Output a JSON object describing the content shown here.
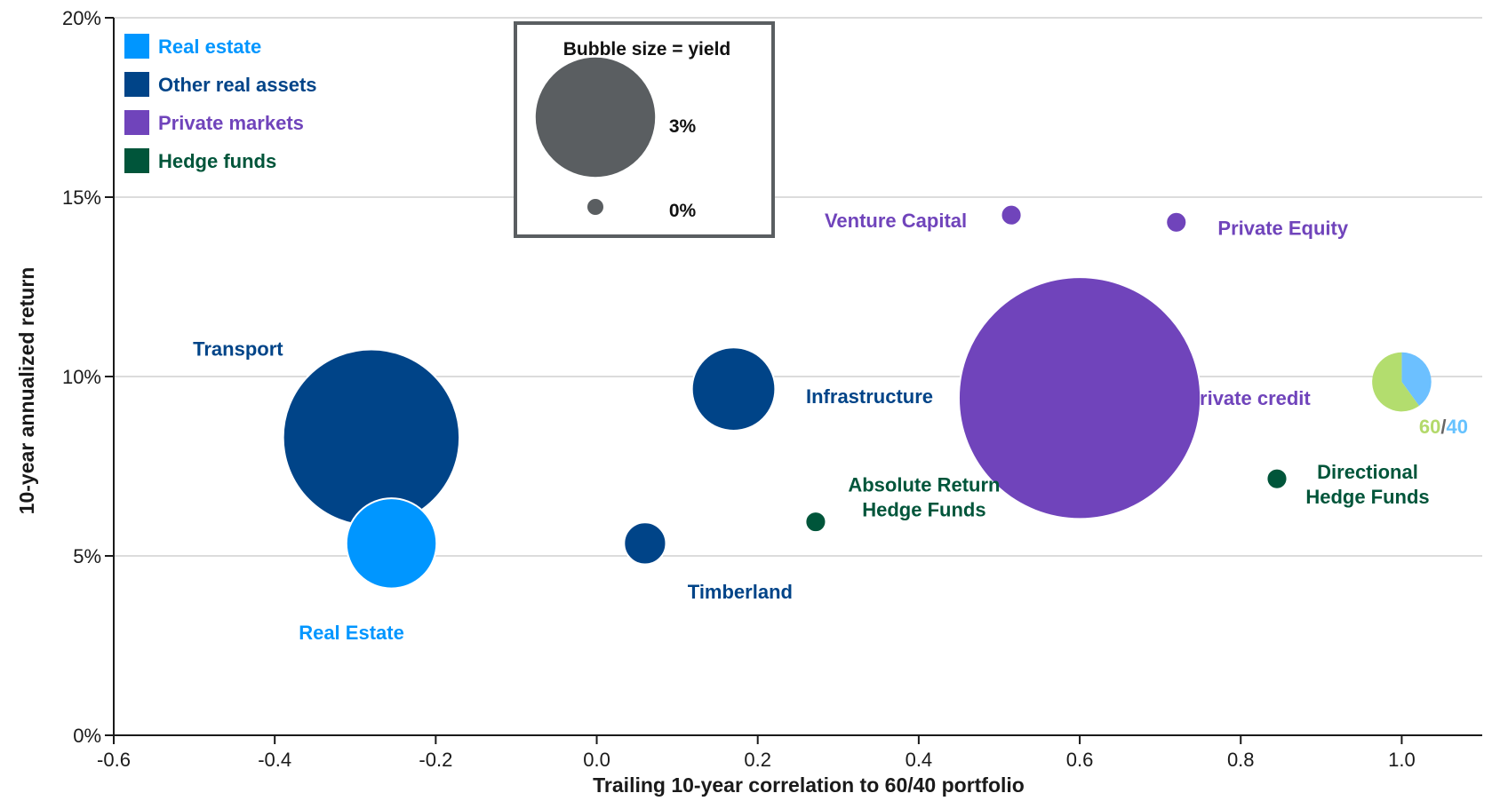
{
  "chart_data": {
    "type": "scatter",
    "subtype": "bubble",
    "xlabel": "Trailing 10-year correlation to 60/40 portfolio",
    "ylabel": "10-year annualized return",
    "xlim": [
      -0.6,
      1.1
    ],
    "ylim": [
      0,
      20
    ],
    "x_ticks": [
      -0.6,
      -0.4,
      -0.2,
      0.0,
      0.2,
      0.4,
      0.6,
      0.8,
      1.0
    ],
    "x_tick_labels": [
      "-0.6",
      "-0.4",
      "-0.2",
      "0.0",
      "0.2",
      "0.4",
      "0.6",
      "0.8",
      "1.0"
    ],
    "y_ticks": [
      0,
      5,
      10,
      15,
      20
    ],
    "y_tick_labels": [
      "0%",
      "5%",
      "10%",
      "15%",
      "20%"
    ],
    "grid": "horizontal",
    "legend": {
      "placement": "top-left",
      "entries": [
        {
          "name": "Real estate",
          "color": "#0096ff"
        },
        {
          "name": "Other real assets",
          "color": "#004488"
        },
        {
          "name": "Private markets",
          "color": "#7044bb"
        },
        {
          "name": "Hedge funds",
          "color": "#00553a"
        }
      ]
    },
    "size_legend": {
      "title": "Bubble size = yield",
      "color": "#5a5e61",
      "entries": [
        {
          "label": "3%",
          "yield": 3.0
        },
        {
          "label": "0%",
          "yield": 0.0
        }
      ]
    },
    "points": [
      {
        "name": "Transport",
        "x": -0.28,
        "y": 8.3,
        "yield": 4.6,
        "group": "Other real assets",
        "color": "#004488"
      },
      {
        "name": "Real Estate",
        "x": -0.255,
        "y": 5.35,
        "yield": 2.1,
        "group": "Real estate",
        "color": "#0096ff"
      },
      {
        "name": "Timberland",
        "x": 0.06,
        "y": 5.35,
        "yield": 0.7,
        "group": "Other real assets",
        "color": "#004488"
      },
      {
        "name": "Infrastructure",
        "x": 0.17,
        "y": 9.65,
        "yield": 1.9,
        "group": "Other real assets",
        "color": "#004488"
      },
      {
        "name": "Absolute Return Hedge Funds",
        "x": 0.272,
        "y": 5.95,
        "yield": 0.08,
        "group": "Hedge funds",
        "color": "#00553a"
      },
      {
        "name": "Venture Capital",
        "x": 0.515,
        "y": 14.5,
        "yield": 0.08,
        "group": "Private markets",
        "color": "#7044bb"
      },
      {
        "name": "Private Equity",
        "x": 0.72,
        "y": 14.3,
        "yield": 0.08,
        "group": "Private markets",
        "color": "#7044bb"
      },
      {
        "name": "Private credit",
        "x": 0.6,
        "y": 9.4,
        "yield": 6.5,
        "group": "Private markets",
        "color": "#7044bb"
      },
      {
        "name": "Directional Hedge Funds",
        "x": 0.845,
        "y": 7.15,
        "yield": 0.08,
        "group": "Hedge funds",
        "color": "#00553a"
      }
    ],
    "reference_point": {
      "label_parts": [
        "60",
        "/",
        "40"
      ],
      "label_colors": [
        "#b3d96b",
        "#666666",
        "#66c2ff"
      ],
      "x": 1.0,
      "y": 9.85,
      "yield": 1.2,
      "slices": [
        {
          "name": "60",
          "share": 60,
          "color": "#b3dd6e"
        },
        {
          "name": "40",
          "share": 40,
          "color": "#6cc0ff"
        }
      ]
    }
  }
}
